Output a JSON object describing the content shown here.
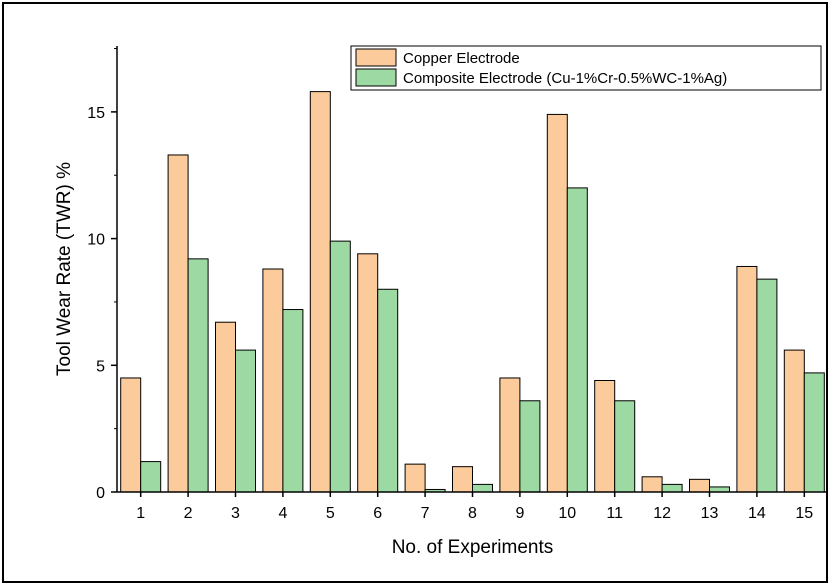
{
  "chart_data": {
    "type": "bar",
    "title": "",
    "xlabel": "No. of Experiments",
    "ylabel": "Tool Wear Rate (TWR) %",
    "categories": [
      "1",
      "2",
      "3",
      "4",
      "5",
      "6",
      "7",
      "8",
      "9",
      "10",
      "11",
      "12",
      "13",
      "14",
      "15"
    ],
    "ylim": [
      0,
      17.6
    ],
    "yticks": [
      0,
      5,
      10,
      15
    ],
    "ytick_labels": [
      "0",
      "5",
      "10",
      "15"
    ],
    "grid": false,
    "legend_position": "top-right",
    "series": [
      {
        "name": "Copper Electrode",
        "color": "#fccb9b",
        "values": [
          4.5,
          13.3,
          6.7,
          8.8,
          15.8,
          9.4,
          1.1,
          1.0,
          4.5,
          14.9,
          4.4,
          0.6,
          0.5,
          8.9,
          5.6
        ]
      },
      {
        "name": "Composite Electrode (Cu-1%Cr-0.5%WC-1%Ag)",
        "color": "#9dd9a3",
        "values": [
          1.2,
          9.2,
          5.6,
          7.2,
          9.9,
          8.0,
          0.1,
          0.3,
          3.6,
          12.0,
          3.6,
          0.3,
          0.2,
          8.4,
          4.7
        ]
      }
    ]
  }
}
